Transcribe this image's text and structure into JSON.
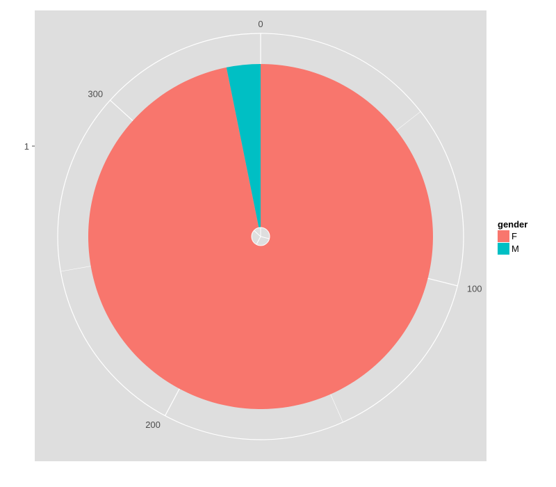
{
  "chart_data": {
    "type": "pie",
    "coord": "polar",
    "y_category": "1",
    "theta_ticks": [
      0,
      100,
      200,
      300
    ],
    "theta_max": 346,
    "slices": [
      {
        "label": "F",
        "value": 335,
        "color": "#F8766D"
      },
      {
        "label": "M",
        "value": 11,
        "color": "#00BFC4"
      }
    ],
    "legend": {
      "title": "gender",
      "position": "right",
      "entries": [
        "F",
        "M"
      ]
    },
    "grid": true,
    "panel_background": "#DEDEDE",
    "grid_color": "#FFFFFF"
  }
}
